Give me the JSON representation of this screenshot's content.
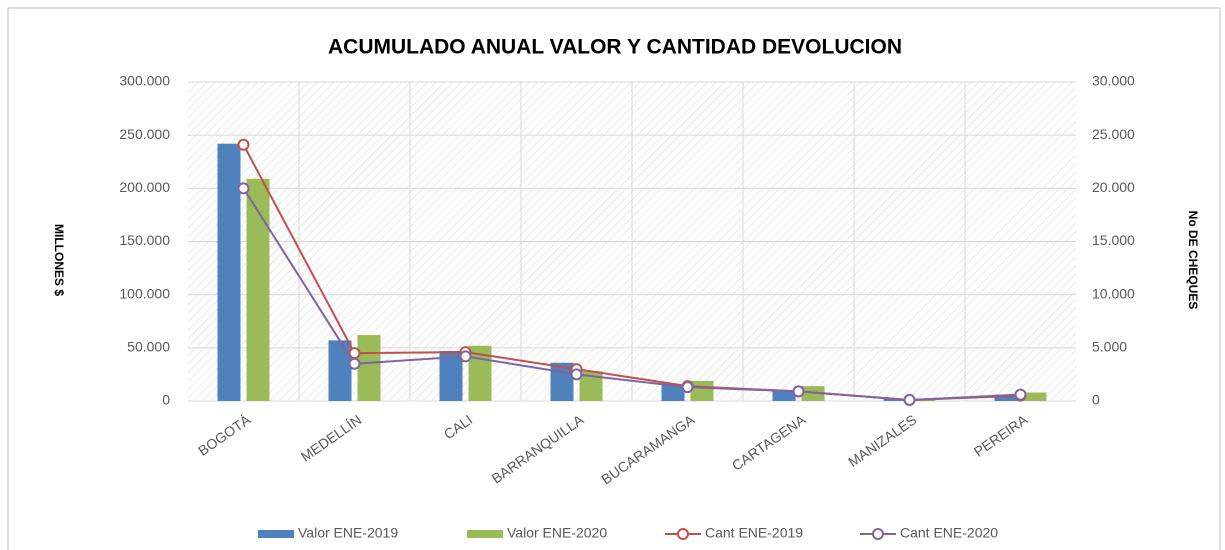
{
  "chart_data": {
    "type": "bar_line",
    "title": "ACUMULADO ANUAL VALOR Y CANTIDAD DEVOLUCION",
    "y_label": "MILLONES $",
    "y2_label": "No DE CHEQUES",
    "categories": [
      "BOGOTÁ",
      "MEDELLÍN",
      "CALI",
      "BARRANQUILLA",
      "BUCARAMANGA",
      "CARTAGENA",
      "MANIZALES",
      "PEREIRA"
    ],
    "series": [
      {
        "name": "Valor ENE-2019",
        "type": "bar",
        "color": "#4f81bd",
        "values": [
          242000,
          57000,
          47000,
          36000,
          15000,
          10000,
          2000,
          6000
        ]
      },
      {
        "name": "Valor ENE-2020",
        "type": "bar",
        "color": "#9bbb59",
        "values": [
          209000,
          62000,
          52000,
          28000,
          19000,
          14000,
          1000,
          8000
        ]
      },
      {
        "name": "Cant ENE-2019",
        "type": "line",
        "axis": "y2",
        "color": "#c0504d",
        "values": [
          24100,
          4500,
          4600,
          3000,
          1400,
          900,
          100,
          500
        ]
      },
      {
        "name": "Cant ENE-2020",
        "type": "line",
        "axis": "y2",
        "color": "#8064a2",
        "values": [
          20000,
          3500,
          4200,
          2500,
          1300,
          900,
          100,
          600
        ]
      }
    ],
    "ylim": [
      0,
      300000
    ],
    "yticks": [
      0,
      {
        "value": 50000,
        "label": "50.000"
      },
      {
        "value": 100000,
        "label": "100.000"
      },
      {
        "value": 150000,
        "label": "150.000"
      },
      {
        "value": 200000,
        "label": "200.000"
      },
      {
        "value": 250000,
        "label": "250.000"
      },
      {
        "value": 300000,
        "label": "300.000"
      }
    ],
    "y2lim": [
      0,
      30000
    ],
    "y2ticks": [
      0,
      {
        "value": 5000,
        "label": "5.000"
      },
      {
        "value": 10000,
        "label": "10.000"
      },
      {
        "value": 15000,
        "label": "15.000"
      },
      {
        "value": 20000,
        "label": "20.000"
      },
      {
        "value": 25000,
        "label": "25.000"
      },
      {
        "value": 30000,
        "label": "30.000"
      }
    ],
    "grid": true,
    "legend": "bottom"
  }
}
